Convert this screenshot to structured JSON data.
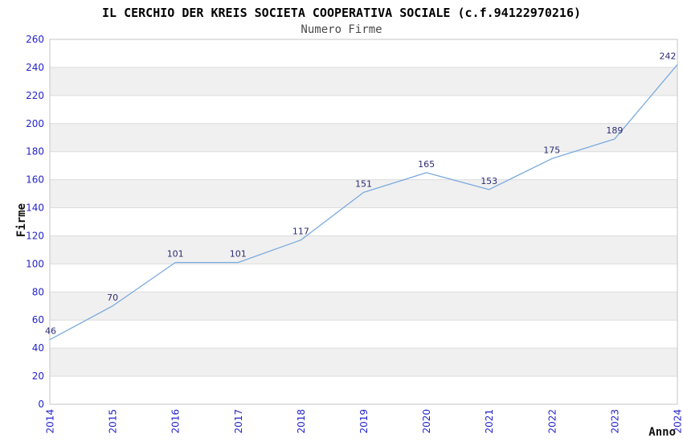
{
  "chart_data": {
    "type": "line",
    "title": "IL CERCHIO DER KREIS SOCIETA COOPERATIVA SOCIALE (c.f.94122970216)",
    "subtitle": "Numero Firme",
    "xlabel": "Anno",
    "ylabel": "Firme",
    "categories": [
      "2014",
      "2015",
      "2016",
      "2017",
      "2018",
      "2019",
      "2020",
      "2021",
      "2022",
      "2023",
      "2024"
    ],
    "values": [
      46,
      70,
      101,
      101,
      117,
      151,
      165,
      153,
      175,
      189,
      242
    ],
    "ylim": [
      0,
      260
    ],
    "ytick_step": 20,
    "grid": true,
    "alternating_bands": true,
    "legend": "none",
    "show_point_labels": true,
    "x_tick_rotation": -90,
    "colors": {
      "line": "#7AAADE",
      "tick_label": "#2424CC",
      "point_label": "#2B2B75",
      "band": "#F0F0F0",
      "gridline": "#DCDCDC",
      "border": "#C4C4C4",
      "title": "#000000",
      "subtitle": "#4A4A4A",
      "axis_title": "#111111",
      "background": "#FFFFFF"
    }
  }
}
